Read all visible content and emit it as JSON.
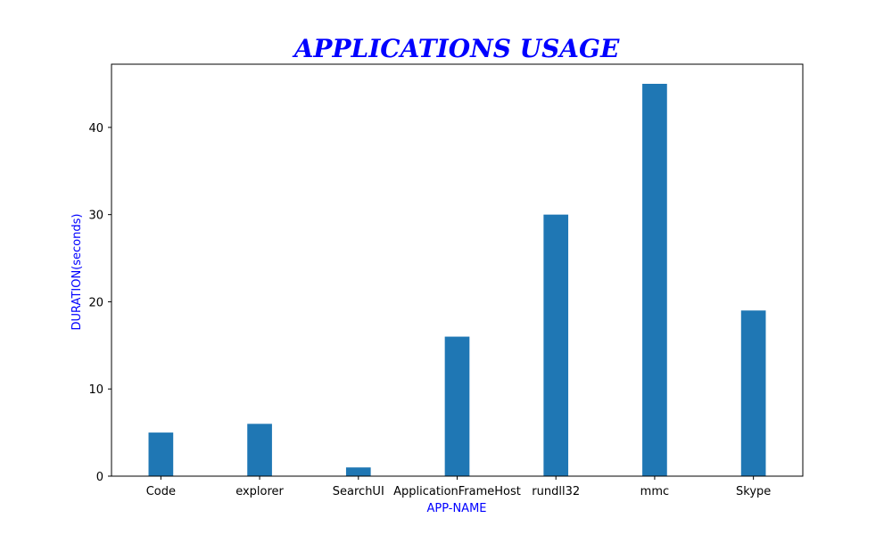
{
  "chart_data": {
    "type": "bar",
    "title": "APPLICATIONS USAGE",
    "xlabel": "APP-NAME",
    "ylabel": "DURATION(seconds)",
    "categories": [
      "Code",
      "explorer",
      "SearchUI",
      "ApplicationFrameHost",
      "rundll32",
      "mmc",
      "Skype"
    ],
    "values": [
      5,
      6,
      1,
      16,
      30,
      45,
      19
    ],
    "ylim": [
      0,
      47.25
    ],
    "yticks": [
      0,
      10,
      20,
      30,
      40
    ],
    "grid": false,
    "colors": {
      "bar": "#1f77b4",
      "title": "#0000ff",
      "axis_label": "#0000ff",
      "axis": "#000000"
    }
  }
}
